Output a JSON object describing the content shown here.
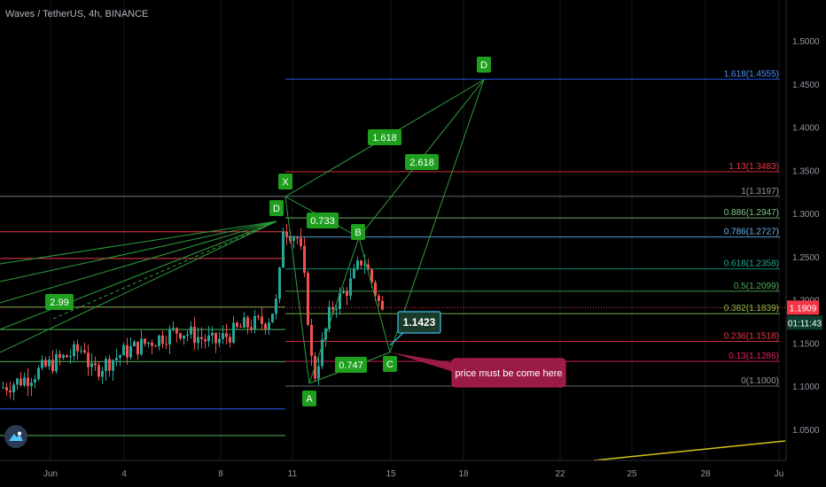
{
  "header": {
    "title": "Waves / TetherUS, 4h, BINANCE"
  },
  "chart_data": {
    "type": "candlestick",
    "y_ticks": [
      "1.5000",
      "1.4500",
      "1.4000",
      "1.3500",
      "1.3000",
      "1.2500",
      "1.2000",
      "1.1500",
      "1.1000",
      "1.0500"
    ],
    "x_ticks": [
      "Jun",
      "4",
      "8",
      "11",
      "15",
      "18",
      "22",
      "25",
      "28",
      "Ju"
    ],
    "fib_levels": [
      {
        "label": "1.618(1.4555)",
        "value": 1.4555,
        "color": "#2962ff",
        "text_color": "#4d8ff5"
      },
      {
        "label": "1.13(1.3483)",
        "value": 1.3483,
        "color": "#f23645",
        "text_color": "#f23645"
      },
      {
        "label": "1(1.3197)",
        "value": 1.3197,
        "color": "#787b86",
        "text_color": "#9598a1"
      },
      {
        "label": "0.886(1.2947)",
        "value": 1.2947,
        "color": "#81c784",
        "text_color": "#81c784"
      },
      {
        "label": "0.786(1.2727)",
        "value": 1.2727,
        "color": "#64b5f6",
        "text_color": "#64b5f6"
      },
      {
        "label": "0.618(1.2358)",
        "value": 1.2358,
        "color": "#089981",
        "text_color": "#22ab94"
      },
      {
        "label": "0.5(1.2099)",
        "value": 1.2099,
        "color": "#4caf50",
        "text_color": "#4caf50"
      },
      {
        "label": "0.382(1.1839)",
        "value": 1.1839,
        "color": "#8bc34a",
        "text_color": "#8bc34a"
      },
      {
        "label": "0.236(1.1518)",
        "value": 1.1518,
        "color": "#f23645",
        "text_color": "#f23645"
      },
      {
        "label": "0.13(1.1286)",
        "value": 1.1286,
        "color": "#e91e63",
        "text_color": "#e91e63"
      },
      {
        "label": "0(1.1000)",
        "value": 1.1,
        "color": "#787b86",
        "text_color": "#9598a1"
      }
    ],
    "left_levels": [
      {
        "value": 1.3197,
        "color": "#787b86"
      },
      {
        "value": 1.2787,
        "color": "#f23645"
      },
      {
        "value": 1.2478,
        "color": "#f23645"
      },
      {
        "value": 1.1915,
        "color": "#4caf50"
      },
      {
        "value": 1.1655,
        "color": "#4caf50"
      },
      {
        "value": 1.1283,
        "color": "#4caf50"
      },
      {
        "value": 1.0735,
        "color": "#2962ff"
      },
      {
        "value": 1.0427,
        "color": "#4caf50"
      }
    ],
    "pattern_points": {
      "X": "X",
      "A": "A",
      "B": "B",
      "C": "C",
      "D_target": "D",
      "D_prev": "D"
    },
    "ratio_labels": [
      "0.733",
      "1.618",
      "2.618",
      "0.747",
      "2.99"
    ],
    "price_box": "1.1423",
    "note": "price must be come here",
    "current_price": "1.1909",
    "countdown": "01:11:43"
  },
  "colors": {
    "bull": "#26a69a",
    "bear": "#ef5350",
    "green_label": "#1e9f1e",
    "note_bg": "#9b1b47",
    "price_tag": "#f23645",
    "countdown_bg": "#0b3d2e"
  }
}
